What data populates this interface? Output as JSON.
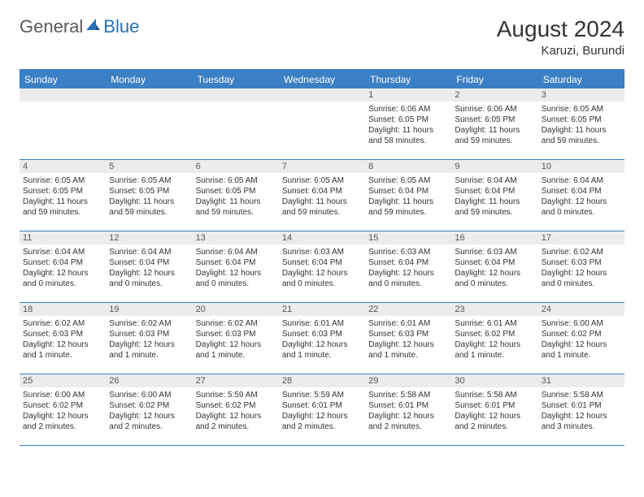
{
  "brand": {
    "part1": "General",
    "part2": "Blue"
  },
  "title": "August 2024",
  "location": "Karuzi, Burundi",
  "colors": {
    "header_bg": "#3b7fc4",
    "header_text": "#ffffff",
    "daynum_bg": "#ececec",
    "border": "#3b7fc4",
    "logo_gray": "#5a5a5a",
    "logo_blue": "#2a6fb5"
  },
  "weekdays": [
    "Sunday",
    "Monday",
    "Tuesday",
    "Wednesday",
    "Thursday",
    "Friday",
    "Saturday"
  ],
  "leading_blanks": 4,
  "days": [
    {
      "n": 1,
      "sunrise": "6:06 AM",
      "sunset": "6:05 PM",
      "daylight": "11 hours and 58 minutes."
    },
    {
      "n": 2,
      "sunrise": "6:06 AM",
      "sunset": "6:05 PM",
      "daylight": "11 hours and 59 minutes."
    },
    {
      "n": 3,
      "sunrise": "6:05 AM",
      "sunset": "6:05 PM",
      "daylight": "11 hours and 59 minutes."
    },
    {
      "n": 4,
      "sunrise": "6:05 AM",
      "sunset": "6:05 PM",
      "daylight": "11 hours and 59 minutes."
    },
    {
      "n": 5,
      "sunrise": "6:05 AM",
      "sunset": "6:05 PM",
      "daylight": "11 hours and 59 minutes."
    },
    {
      "n": 6,
      "sunrise": "6:05 AM",
      "sunset": "6:05 PM",
      "daylight": "11 hours and 59 minutes."
    },
    {
      "n": 7,
      "sunrise": "6:05 AM",
      "sunset": "6:04 PM",
      "daylight": "11 hours and 59 minutes."
    },
    {
      "n": 8,
      "sunrise": "6:05 AM",
      "sunset": "6:04 PM",
      "daylight": "11 hours and 59 minutes."
    },
    {
      "n": 9,
      "sunrise": "6:04 AM",
      "sunset": "6:04 PM",
      "daylight": "11 hours and 59 minutes."
    },
    {
      "n": 10,
      "sunrise": "6:04 AM",
      "sunset": "6:04 PM",
      "daylight": "12 hours and 0 minutes."
    },
    {
      "n": 11,
      "sunrise": "6:04 AM",
      "sunset": "6:04 PM",
      "daylight": "12 hours and 0 minutes."
    },
    {
      "n": 12,
      "sunrise": "6:04 AM",
      "sunset": "6:04 PM",
      "daylight": "12 hours and 0 minutes."
    },
    {
      "n": 13,
      "sunrise": "6:04 AM",
      "sunset": "6:04 PM",
      "daylight": "12 hours and 0 minutes."
    },
    {
      "n": 14,
      "sunrise": "6:03 AM",
      "sunset": "6:04 PM",
      "daylight": "12 hours and 0 minutes."
    },
    {
      "n": 15,
      "sunrise": "6:03 AM",
      "sunset": "6:04 PM",
      "daylight": "12 hours and 0 minutes."
    },
    {
      "n": 16,
      "sunrise": "6:03 AM",
      "sunset": "6:04 PM",
      "daylight": "12 hours and 0 minutes."
    },
    {
      "n": 17,
      "sunrise": "6:02 AM",
      "sunset": "6:03 PM",
      "daylight": "12 hours and 0 minutes."
    },
    {
      "n": 18,
      "sunrise": "6:02 AM",
      "sunset": "6:03 PM",
      "daylight": "12 hours and 1 minute."
    },
    {
      "n": 19,
      "sunrise": "6:02 AM",
      "sunset": "6:03 PM",
      "daylight": "12 hours and 1 minute."
    },
    {
      "n": 20,
      "sunrise": "6:02 AM",
      "sunset": "6:03 PM",
      "daylight": "12 hours and 1 minute."
    },
    {
      "n": 21,
      "sunrise": "6:01 AM",
      "sunset": "6:03 PM",
      "daylight": "12 hours and 1 minute."
    },
    {
      "n": 22,
      "sunrise": "6:01 AM",
      "sunset": "6:03 PM",
      "daylight": "12 hours and 1 minute."
    },
    {
      "n": 23,
      "sunrise": "6:01 AM",
      "sunset": "6:02 PM",
      "daylight": "12 hours and 1 minute."
    },
    {
      "n": 24,
      "sunrise": "6:00 AM",
      "sunset": "6:02 PM",
      "daylight": "12 hours and 1 minute."
    },
    {
      "n": 25,
      "sunrise": "6:00 AM",
      "sunset": "6:02 PM",
      "daylight": "12 hours and 2 minutes."
    },
    {
      "n": 26,
      "sunrise": "6:00 AM",
      "sunset": "6:02 PM",
      "daylight": "12 hours and 2 minutes."
    },
    {
      "n": 27,
      "sunrise": "5:59 AM",
      "sunset": "6:02 PM",
      "daylight": "12 hours and 2 minutes."
    },
    {
      "n": 28,
      "sunrise": "5:59 AM",
      "sunset": "6:01 PM",
      "daylight": "12 hours and 2 minutes."
    },
    {
      "n": 29,
      "sunrise": "5:58 AM",
      "sunset": "6:01 PM",
      "daylight": "12 hours and 2 minutes."
    },
    {
      "n": 30,
      "sunrise": "5:58 AM",
      "sunset": "6:01 PM",
      "daylight": "12 hours and 2 minutes."
    },
    {
      "n": 31,
      "sunrise": "5:58 AM",
      "sunset": "6:01 PM",
      "daylight": "12 hours and 3 minutes."
    }
  ],
  "labels": {
    "sunrise": "Sunrise:",
    "sunset": "Sunset:",
    "daylight": "Daylight:"
  }
}
